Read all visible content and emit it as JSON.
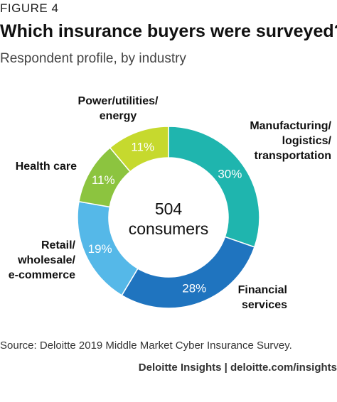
{
  "figure_label": "FIGURE 4",
  "title": "Which insurance buyers were surveyed?",
  "subtitle": "Respondent profile, by industry",
  "source": "Source: Deloitte 2019 Middle Market Cyber Insurance Survey.",
  "footer": "Deloitte Insights | deloitte.com/insights",
  "chart_data": {
    "type": "pie",
    "donut": true,
    "center_value": "504",
    "center_label": "consumers",
    "slices": [
      {
        "label_lines": [
          "Manufacturing/",
          "logistics/",
          "transportation"
        ],
        "value": 30,
        "value_label": "30%",
        "color": "#1fb5ae"
      },
      {
        "label_lines": [
          "Financial",
          "services"
        ],
        "value": 28,
        "value_label": "28%",
        "color": "#1f74bf"
      },
      {
        "label_lines": [
          "Retail/",
          "wholesale/",
          "e-commerce"
        ],
        "value": 19,
        "value_label": "19%",
        "color": "#55b8e8"
      },
      {
        "label_lines": [
          "Health care"
        ],
        "value": 11,
        "value_label": "11%",
        "color": "#8cc43f"
      },
      {
        "label_lines": [
          "Power/utilities/",
          "energy"
        ],
        "value": 11,
        "value_label": "11%",
        "color": "#c6d92e"
      }
    ]
  }
}
